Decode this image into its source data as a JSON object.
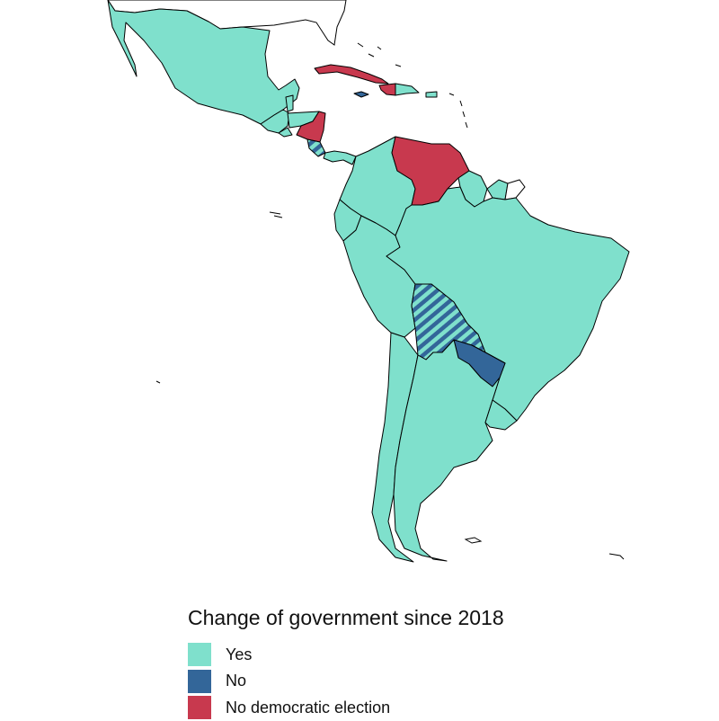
{
  "legend": {
    "title": "Change of government since 2018",
    "items": [
      {
        "label": "Yes",
        "color": "#7fe0cc"
      },
      {
        "label": "No",
        "color": "#336699"
      },
      {
        "label": "No democratic election",
        "color": "#c8394e"
      }
    ]
  },
  "colors": {
    "yes": "#7fe0cc",
    "no": "#336699",
    "no_democratic_election": "#c8394e",
    "border": "#000000",
    "background": "#ffffff"
  },
  "countries": [
    {
      "name": "Mexico",
      "status": "yes"
    },
    {
      "name": "Guatemala",
      "status": "yes"
    },
    {
      "name": "Belize",
      "status": "yes"
    },
    {
      "name": "Honduras",
      "status": "yes"
    },
    {
      "name": "El Salvador",
      "status": "yes"
    },
    {
      "name": "Nicaragua",
      "status": "no_democratic_election"
    },
    {
      "name": "Costa Rica",
      "status": "mixed_yes_no"
    },
    {
      "name": "Panama",
      "status": "yes"
    },
    {
      "name": "Cuba",
      "status": "no_democratic_election"
    },
    {
      "name": "Jamaica",
      "status": "no"
    },
    {
      "name": "Haiti",
      "status": "no_democratic_election"
    },
    {
      "name": "Dominican Republic",
      "status": "yes"
    },
    {
      "name": "Puerto Rico",
      "status": "yes"
    },
    {
      "name": "Colombia",
      "status": "yes"
    },
    {
      "name": "Venezuela",
      "status": "no_democratic_election"
    },
    {
      "name": "Guyana",
      "status": "yes"
    },
    {
      "name": "Suriname",
      "status": "yes"
    },
    {
      "name": "French Guiana",
      "status": "none"
    },
    {
      "name": "Ecuador",
      "status": "yes"
    },
    {
      "name": "Peru",
      "status": "yes"
    },
    {
      "name": "Brazil",
      "status": "yes"
    },
    {
      "name": "Bolivia",
      "status": "mixed_yes_no"
    },
    {
      "name": "Paraguay",
      "status": "no"
    },
    {
      "name": "Chile",
      "status": "yes"
    },
    {
      "name": "Argentina",
      "status": "yes"
    },
    {
      "name": "Uruguay",
      "status": "yes"
    }
  ]
}
